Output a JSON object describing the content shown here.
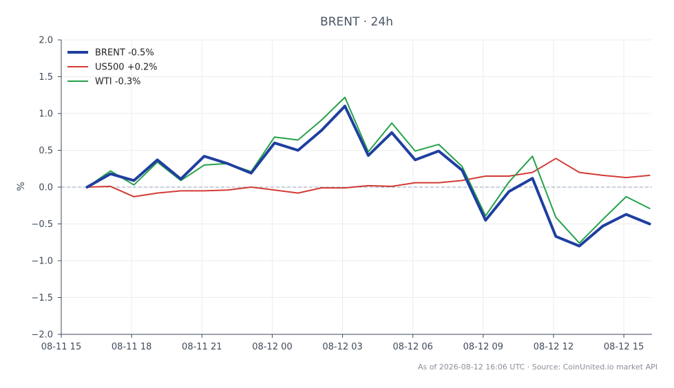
{
  "chart_data": {
    "type": "line",
    "title": "BRENT · 24h",
    "xlabel": "",
    "ylabel": "%",
    "ylim": [
      -2.0,
      2.0
    ],
    "yticks": [
      "2.0",
      "1.5",
      "1.0",
      "0.5",
      "0.0",
      "−0.5",
      "−1.0",
      "−1.5",
      "−2.0"
    ],
    "ytick_values": [
      2.0,
      1.5,
      1.0,
      0.5,
      0.0,
      -0.5,
      -1.0,
      -1.5,
      -2.0
    ],
    "xlim_hours": [
      0,
      25.2
    ],
    "xtick_labels": [
      "08-11 15",
      "08-11 18",
      "08-11 21",
      "08-12 00",
      "08-12 03",
      "08-12 06",
      "08-12 09",
      "08-12 12",
      "08-12 15"
    ],
    "xtick_hours": [
      0,
      3,
      6,
      9,
      12,
      15,
      18,
      21,
      24
    ],
    "x_hours": [
      1.1,
      2.1,
      3.1,
      4.1,
      5.1,
      6.1,
      7.1,
      8.1,
      9.1,
      10.1,
      11.1,
      12.1,
      13.1,
      14.1,
      15.1,
      16.1,
      17.1,
      18.1,
      19.1,
      20.1,
      21.1,
      22.1,
      23.1,
      24.1,
      25.1
    ],
    "grid": true,
    "zero_line": true,
    "legend_position": "top-left",
    "series": [
      {
        "name": "BRENT -0.5%",
        "color": "#1f3f9f",
        "values": [
          0.0,
          0.18,
          0.09,
          0.37,
          0.11,
          0.42,
          0.32,
          0.19,
          0.6,
          0.5,
          0.77,
          1.1,
          0.43,
          0.74,
          0.37,
          0.49,
          0.23,
          -0.45,
          -0.06,
          0.12,
          -0.67,
          -0.8,
          -0.53,
          -0.37,
          -0.5
        ]
      },
      {
        "name": "US500 +0.2%",
        "color": "#d33a35",
        "values": [
          0.0,
          0.01,
          -0.13,
          -0.08,
          -0.05,
          -0.05,
          -0.04,
          0.0,
          -0.04,
          -0.08,
          -0.01,
          -0.01,
          0.02,
          0.01,
          0.06,
          0.06,
          0.09,
          0.15,
          0.15,
          0.2,
          0.39,
          0.2,
          0.16,
          0.13,
          0.16
        ]
      },
      {
        "name": "WTI -0.3%",
        "color": "#25a04a",
        "values": [
          0.0,
          0.22,
          0.03,
          0.34,
          0.09,
          0.3,
          0.32,
          0.21,
          0.68,
          0.64,
          0.91,
          1.22,
          0.48,
          0.87,
          0.49,
          0.58,
          0.28,
          -0.39,
          0.07,
          0.42,
          -0.41,
          -0.76,
          -0.44,
          -0.13,
          -0.29
        ]
      }
    ]
  },
  "footer": {
    "text": "As of 2026-08-12 16:06 UTC · Source: CoinUnited.io market API"
  }
}
